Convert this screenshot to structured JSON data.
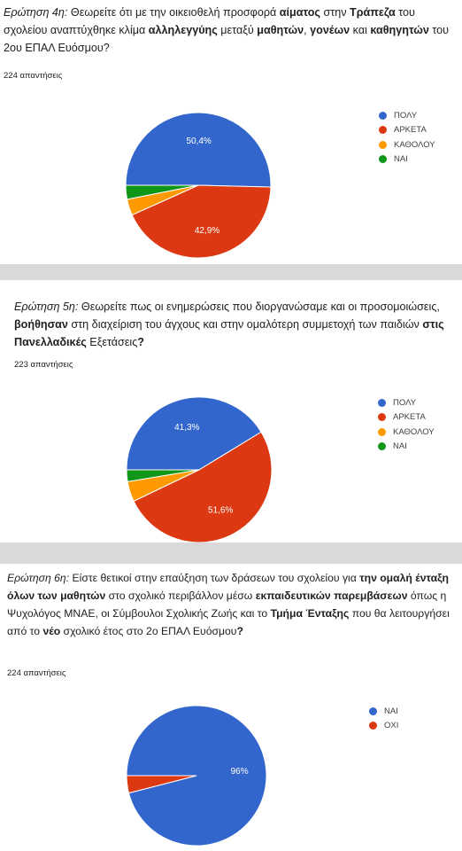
{
  "colors": {
    "blue": "#3366cc",
    "red": "#dc3912",
    "orange": "#ff9900",
    "green": "#109618",
    "separator": "#d9d9d9"
  },
  "q1": {
    "lead": "Ερώτηση 4η:",
    "parts": [
      " Θεωρείτε ότι με την οικειοθελή προσφορά ",
      "αίματος",
      " στην ",
      "Τράπεζα",
      " του σχολείου αναπτύχθηκε κλίμα ",
      "αλληλεγγύης",
      " μεταξύ ",
      "μαθητών",
      ", ",
      "γονέων",
      " και ",
      "καθηγητών",
      " του 2ου ΕΠΑΛ Ευόσμου?"
    ],
    "responses": "224 απαντήσεις",
    "legend": [
      "ΠΟΛΥ",
      "ΑΡΚΕΤΑ",
      "ΚΑΘΟΛΟΥ",
      "ΝΑΙ"
    ],
    "labels": [
      "50,4%",
      "42,9%"
    ]
  },
  "q2": {
    "lead": "Ερώτηση 5η:",
    "parts": " Θεωρείτε  πως οι ενημερώσεις που διοργανώσαμε και οι προσομοιώσεις, |βοήθησαν| στη διαχείριση του άγχους και στην ομαλότερη συμμετοχή των παιδιών |στις Πανελλαδικές| Εξετάσεις|?",
    "responses": "223 απαντήσεις",
    "legend": [
      "ΠΟΛΥ",
      "ΑΡΚΕΤΑ",
      "ΚΑΘΟΛΟΥ",
      "ΝΑΙ"
    ],
    "labels": [
      "41,3%",
      "51,6%"
    ]
  },
  "q3": {
    "lead": "Ερώτηση 6η:",
    "responses": "224 απαντήσεις",
    "legend": [
      "ΝΑΙ",
      "ΟΧΙ"
    ],
    "labels": [
      "96%"
    ]
  },
  "chart_data": [
    {
      "type": "pie",
      "title": "Ερώτηση 4η",
      "categories": [
        "ΠΟΛΥ",
        "ΑΡΚΕΤΑ",
        "ΚΑΘΟΛΟΥ",
        "ΝΑΙ"
      ],
      "values": [
        50.4,
        42.9,
        3.6,
        3.1
      ],
      "legend_position": "right"
    },
    {
      "type": "pie",
      "title": "Ερώτηση 5η",
      "categories": [
        "ΠΟΛΥ",
        "ΑΡΚΕΤΑ",
        "ΚΑΘΟΛΟΥ",
        "ΝΑΙ"
      ],
      "values": [
        41.3,
        51.6,
        4.5,
        2.6
      ],
      "legend_position": "right"
    },
    {
      "type": "pie",
      "title": "Ερώτηση 6η",
      "categories": [
        "ΝΑΙ",
        "ΟΧΙ"
      ],
      "values": [
        96,
        4
      ],
      "legend_position": "right"
    }
  ]
}
